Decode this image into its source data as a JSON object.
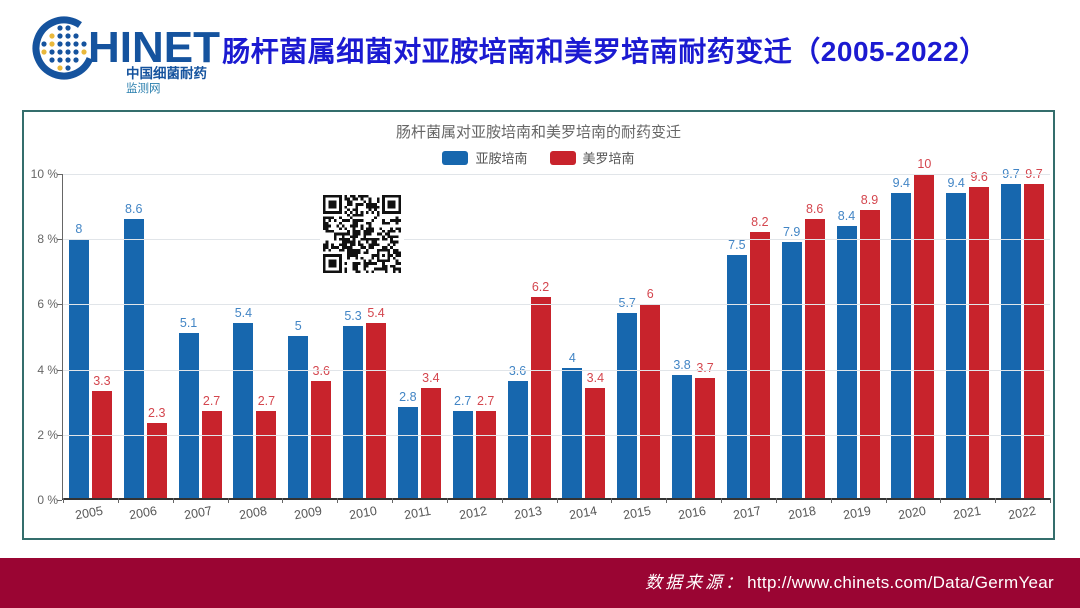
{
  "header": {
    "logo": {
      "brand_text": "HINET",
      "subtitle1": "中国细菌耐药",
      "subtitle2": "监测网"
    },
    "title": "肠杆菌属细菌对亚胺培南和美罗培南耐药变迁（2005-2022）"
  },
  "colors": {
    "title_blue": "#1b1ad1",
    "card_border": "#346e6c",
    "footer_bg": "#9a0533",
    "logo_blue": "#15539e",
    "logo_yellow": "#e9b83b"
  },
  "chart_data": {
    "type": "bar",
    "title": "肠杆菌属对亚胺培南和美罗培南的耐药变迁",
    "categories": [
      "2005",
      "2006",
      "2007",
      "2008",
      "2009",
      "2010",
      "2011",
      "2012",
      "2013",
      "2014",
      "2015",
      "2016",
      "2017",
      "2018",
      "2019",
      "2020",
      "2021",
      "2022"
    ],
    "series": [
      {
        "name": "亚胺培南",
        "color": "#1767ae",
        "label_color": "#4285c5",
        "values": [
          8,
          8.6,
          5.1,
          5.4,
          5,
          5.3,
          2.8,
          2.7,
          3.6,
          4,
          5.7,
          3.8,
          7.5,
          7.9,
          8.4,
          9.4,
          9.4,
          9.7
        ]
      },
      {
        "name": "美罗培南",
        "color": "#c8232c",
        "label_color": "#d4464e",
        "values": [
          3.3,
          2.3,
          2.7,
          2.7,
          3.6,
          5.4,
          3.4,
          2.7,
          6.2,
          3.4,
          6,
          3.7,
          8.2,
          8.6,
          8.9,
          10,
          9.6,
          9.7
        ]
      }
    ],
    "ylim": [
      0,
      10
    ],
    "y_ticks": [
      "10 %",
      "8 %",
      "6 %",
      "4 %",
      "2 %",
      "0 %"
    ],
    "grid": true,
    "legend_position": "top"
  },
  "qr": {
    "alt": "qr-code"
  },
  "footer": {
    "label": "数据来源：",
    "url": "http://www.chinets.com/Data/GermYear"
  }
}
